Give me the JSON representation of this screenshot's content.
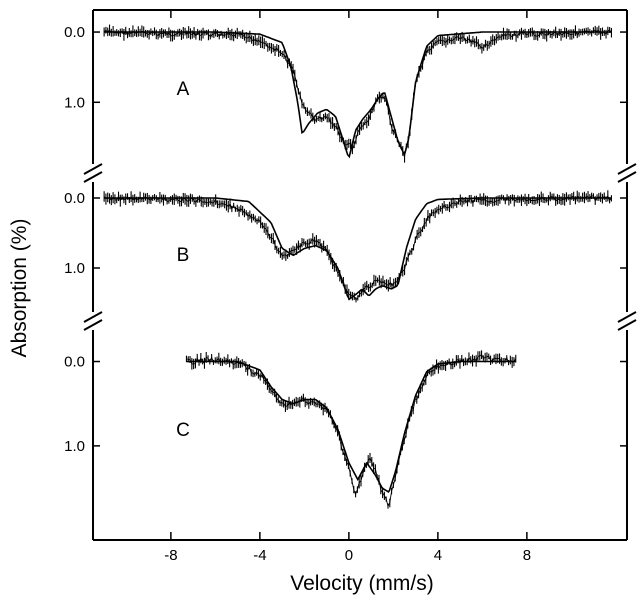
{
  "chart_data": {
    "type": "line",
    "xlabel": "Velocity (mm/s)",
    "ylabel": "Absorption (%)",
    "xlim": [
      -11.5,
      12.5
    ],
    "x_ticks": [
      -8,
      -4,
      0,
      4,
      8
    ],
    "x_tick_labels": [
      "-8",
      "-4",
      "0",
      "4",
      "8"
    ],
    "y_inverted": true,
    "y_axis_breaks": 2,
    "grid": false,
    "panels": [
      {
        "label": "A",
        "x_range": [
          -11.0,
          11.8
        ],
        "y_ticks": [
          0.0,
          1.0
        ],
        "y_tick_labels": [
          "0.0",
          "1.0"
        ],
        "ylim": [
          -0.2,
          1.85
        ],
        "series": [
          {
            "style": "data_with_error_bars",
            "x": [
              -11.0,
              -9.0,
              -7.0,
              -5.0,
              -4.0,
              -3.0,
              -2.5,
              -2.2,
              -2.0,
              -1.5,
              -1.0,
              -0.6,
              -0.3,
              0.0,
              0.2,
              0.5,
              0.8,
              1.2,
              1.5,
              1.7,
              1.9,
              2.2,
              2.5,
              2.7,
              3.0,
              3.5,
              4.0,
              5.0,
              6.0,
              7.0,
              9.0,
              11.8
            ],
            "y": [
              0.0,
              0.02,
              0.03,
              0.05,
              0.12,
              0.3,
              0.55,
              0.9,
              1.1,
              1.25,
              1.2,
              1.35,
              1.55,
              1.6,
              1.65,
              1.35,
              1.3,
              1.0,
              0.9,
              1.0,
              1.35,
              1.55,
              1.75,
              1.5,
              0.7,
              0.3,
              0.15,
              0.08,
              0.2,
              0.05,
              0.02,
              0.0
            ]
          },
          {
            "style": "fit_line",
            "x": [
              -11.0,
              -6.0,
              -4.0,
              -3.0,
              -2.6,
              -2.3,
              -2.1,
              -1.8,
              -1.4,
              -1.0,
              -0.6,
              -0.3,
              0.0,
              0.3,
              0.6,
              1.0,
              1.3,
              1.6,
              1.9,
              2.2,
              2.5,
              2.7,
              3.0,
              3.5,
              4.0,
              6.0,
              11.8
            ],
            "y": [
              0.0,
              0.0,
              0.03,
              0.15,
              0.5,
              1.0,
              1.45,
              1.3,
              1.15,
              1.1,
              1.2,
              1.5,
              1.8,
              1.4,
              1.25,
              1.1,
              0.95,
              0.85,
              1.2,
              1.55,
              1.75,
              1.5,
              0.7,
              0.2,
              0.05,
              0.0,
              0.0
            ]
          }
        ]
      },
      {
        "label": "B",
        "x_range": [
          -11.0,
          11.8
        ],
        "y_ticks": [
          0.0,
          1.0
        ],
        "y_tick_labels": [
          "0.0",
          "1.0"
        ],
        "ylim": [
          -0.2,
          1.6
        ],
        "series": [
          {
            "style": "data_with_error_bars",
            "x": [
              -11.0,
              -8.0,
              -6.0,
              -5.0,
              -4.0,
              -3.5,
              -3.0,
              -2.5,
              -2.0,
              -1.5,
              -1.0,
              -0.5,
              0.0,
              0.3,
              0.6,
              0.9,
              1.2,
              1.6,
              2.0,
              2.5,
              3.0,
              3.5,
              4.0,
              5.0,
              7.0,
              11.8
            ],
            "y": [
              0.0,
              0.02,
              0.05,
              0.15,
              0.35,
              0.55,
              0.85,
              0.75,
              0.65,
              0.6,
              0.75,
              1.05,
              1.4,
              1.45,
              1.3,
              1.25,
              1.2,
              1.2,
              1.25,
              1.0,
              0.6,
              0.3,
              0.15,
              0.05,
              0.02,
              0.0
            ]
          },
          {
            "style": "fit_line",
            "x": [
              -11.0,
              -6.0,
              -4.5,
              -3.5,
              -3.0,
              -2.5,
              -2.0,
              -1.5,
              -1.0,
              -0.5,
              0.0,
              0.3,
              0.6,
              0.9,
              1.2,
              1.5,
              1.9,
              2.2,
              2.6,
              3.0,
              3.5,
              4.0,
              6.0,
              11.8
            ],
            "y": [
              0.0,
              0.0,
              0.05,
              0.35,
              0.72,
              0.82,
              0.72,
              0.68,
              0.75,
              1.0,
              1.45,
              1.38,
              1.3,
              1.4,
              1.3,
              1.25,
              1.3,
              1.25,
              0.7,
              0.3,
              0.08,
              0.02,
              0.0,
              0.0
            ]
          }
        ]
      },
      {
        "label": "C",
        "x_range": [
          -7.3,
          7.5
        ],
        "y_ticks": [
          0.0,
          1.0
        ],
        "y_tick_labels": [
          "0.0",
          "1.0"
        ],
        "ylim": [
          -0.35,
          1.95
        ],
        "series": [
          {
            "style": "data_with_error_bars",
            "x": [
              -7.3,
              -6.0,
              -5.0,
              -4.0,
              -3.5,
              -3.0,
              -2.5,
              -2.0,
              -1.5,
              -1.0,
              -0.5,
              0.0,
              0.3,
              0.6,
              0.9,
              1.2,
              1.5,
              1.8,
              2.1,
              2.5,
              3.0,
              3.5,
              4.0,
              5.0,
              6.0,
              7.5
            ],
            "y": [
              0.0,
              -0.02,
              0.02,
              0.15,
              0.35,
              0.5,
              0.52,
              0.45,
              0.5,
              0.55,
              0.85,
              1.25,
              1.6,
              1.35,
              1.15,
              1.3,
              1.55,
              1.7,
              1.35,
              0.9,
              0.45,
              0.15,
              0.05,
              0.0,
              -0.05,
              0.0
            ]
          },
          {
            "style": "fit_line",
            "x": [
              -7.3,
              -5.0,
              -4.0,
              -3.5,
              -3.0,
              -2.5,
              -2.0,
              -1.5,
              -1.0,
              -0.5,
              0.0,
              0.4,
              0.8,
              1.2,
              1.5,
              1.8,
              2.1,
              2.5,
              3.0,
              3.5,
              4.0,
              5.0,
              7.5
            ],
            "y": [
              0.0,
              0.0,
              0.1,
              0.3,
              0.45,
              0.5,
              0.45,
              0.45,
              0.55,
              0.8,
              1.2,
              1.4,
              1.2,
              1.35,
              1.5,
              1.55,
              1.3,
              0.85,
              0.4,
              0.12,
              0.03,
              0.0,
              0.0
            ]
          }
        ]
      }
    ]
  }
}
